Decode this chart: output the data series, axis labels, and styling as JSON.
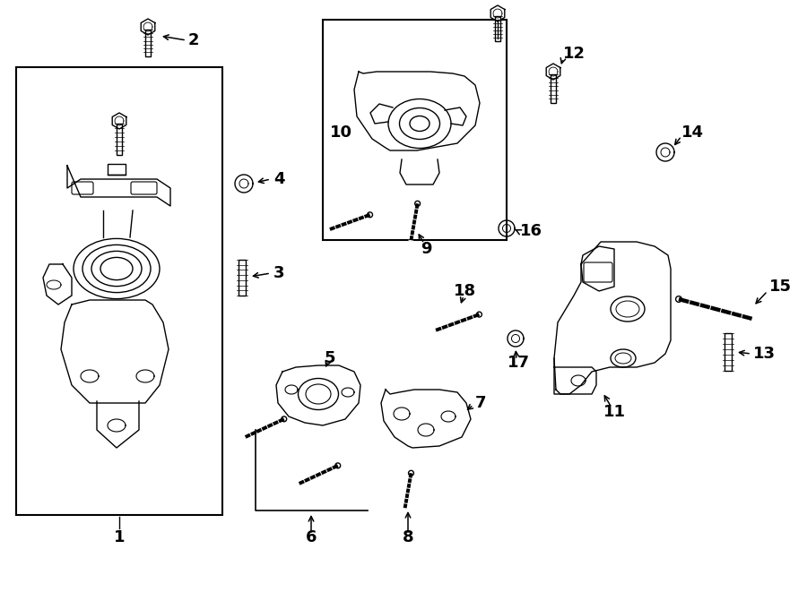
{
  "bg_color": "#ffffff",
  "line_color": "#000000",
  "figsize": [
    9.0,
    6.61
  ],
  "dpi": 100,
  "label_fontsize": 13,
  "lw": 1.0
}
